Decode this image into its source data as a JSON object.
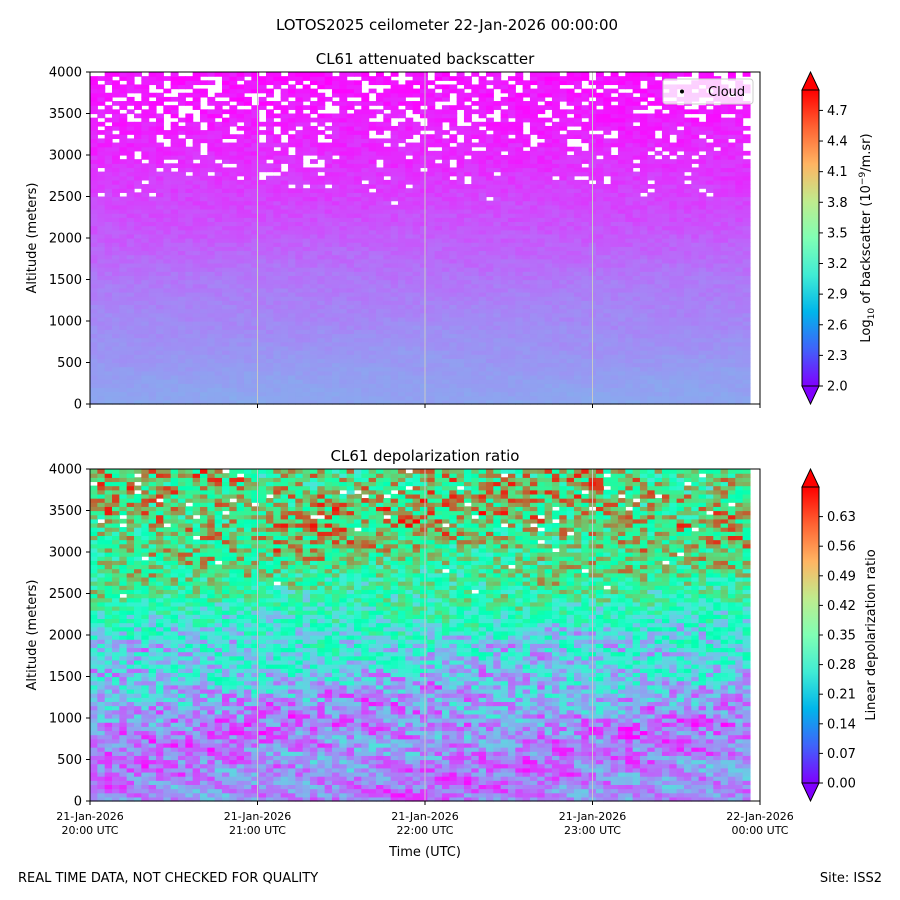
{
  "figure": {
    "suptitle": "LOTOS2025 ceilometer 22-Jan-2026 00:00:00",
    "footer_left": "REAL TIME DATA, NOT CHECKED FOR QUALITY",
    "footer_right": "Site: ISS2"
  },
  "chart_data": [
    {
      "type": "heatmap",
      "title": "CL61 attenuated backscatter",
      "xlabel": "",
      "ylabel": "Altitude (meters)",
      "ylim": [
        0,
        4000
      ],
      "yticks": [
        0,
        500,
        1000,
        1500,
        2000,
        2500,
        3000,
        3500,
        4000
      ],
      "x_range_hours_utc": [
        20.0,
        24.0
      ],
      "data_end_hour_utc": 23.94,
      "xtick_labels": [],
      "colorbar": {
        "label_prefix": "Log",
        "label_sub": "10",
        "label_mid": " of backscatter (10",
        "label_sup": "−9",
        "label_suffix": "/m.sr)",
        "range": [
          2.0,
          4.9
        ],
        "ticks": [
          "2.0",
          "2.3",
          "2.6",
          "2.9",
          "3.2",
          "3.5",
          "3.8",
          "4.1",
          "4.4",
          "4.7"
        ],
        "colormap": "rainbow",
        "extend": "both"
      },
      "legend": {
        "entries": [
          "Cloud"
        ],
        "position": "top-right"
      },
      "profile": [
        {
          "altitude": 0,
          "value": 2.65
        },
        {
          "altitude": 300,
          "value": 2.62
        },
        {
          "altitude": 800,
          "value": 2.55
        },
        {
          "altitude": 1500,
          "value": 2.45
        },
        {
          "altitude": 2200,
          "value": 2.3
        },
        {
          "altitude": 3000,
          "value": 2.15
        },
        {
          "altitude": 4000,
          "value": 2.05
        }
      ],
      "noise_amplitude": 0.05,
      "missing_above_m": 2400
    },
    {
      "type": "heatmap",
      "title": "CL61 depolarization ratio",
      "xlabel": "Time (UTC)",
      "ylabel": "Altitude (meters)",
      "ylim": [
        0,
        4000
      ],
      "yticks": [
        0,
        500,
        1000,
        1500,
        2000,
        2500,
        3000,
        3500,
        4000
      ],
      "x_range_hours_utc": [
        20.0,
        24.0
      ],
      "data_end_hour_utc": 23.94,
      "xtick_labels": [
        [
          "21-Jan-2026",
          "20:00 UTC"
        ],
        [
          "21-Jan-2026",
          "21:00 UTC"
        ],
        [
          "21-Jan-2026",
          "22:00 UTC"
        ],
        [
          "21-Jan-2026",
          "23:00 UTC"
        ],
        [
          "22-Jan-2026",
          "00:00 UTC"
        ]
      ],
      "colorbar": {
        "label": "Linear depolarization ratio",
        "range": [
          0.0,
          0.7
        ],
        "ticks": [
          "0.00",
          "0.07",
          "0.14",
          "0.21",
          "0.28",
          "0.35",
          "0.42",
          "0.49",
          "0.56",
          "0.63"
        ],
        "colormap": "rainbow",
        "extend": "both"
      },
      "profile": [
        {
          "altitude": 0,
          "value": 0.12
        },
        {
          "altitude": 900,
          "value": 0.12
        },
        {
          "altitude": 1500,
          "value": 0.2
        },
        {
          "altitude": 2000,
          "value": 0.26
        },
        {
          "altitude": 2500,
          "value": 0.38
        },
        {
          "altitude": 3000,
          "value": 0.45
        },
        {
          "altitude": 3500,
          "value": 0.5
        },
        {
          "altitude": 4000,
          "value": 0.45
        }
      ],
      "noise_amplitude": 0.14,
      "missing_above_m": 2400
    }
  ]
}
